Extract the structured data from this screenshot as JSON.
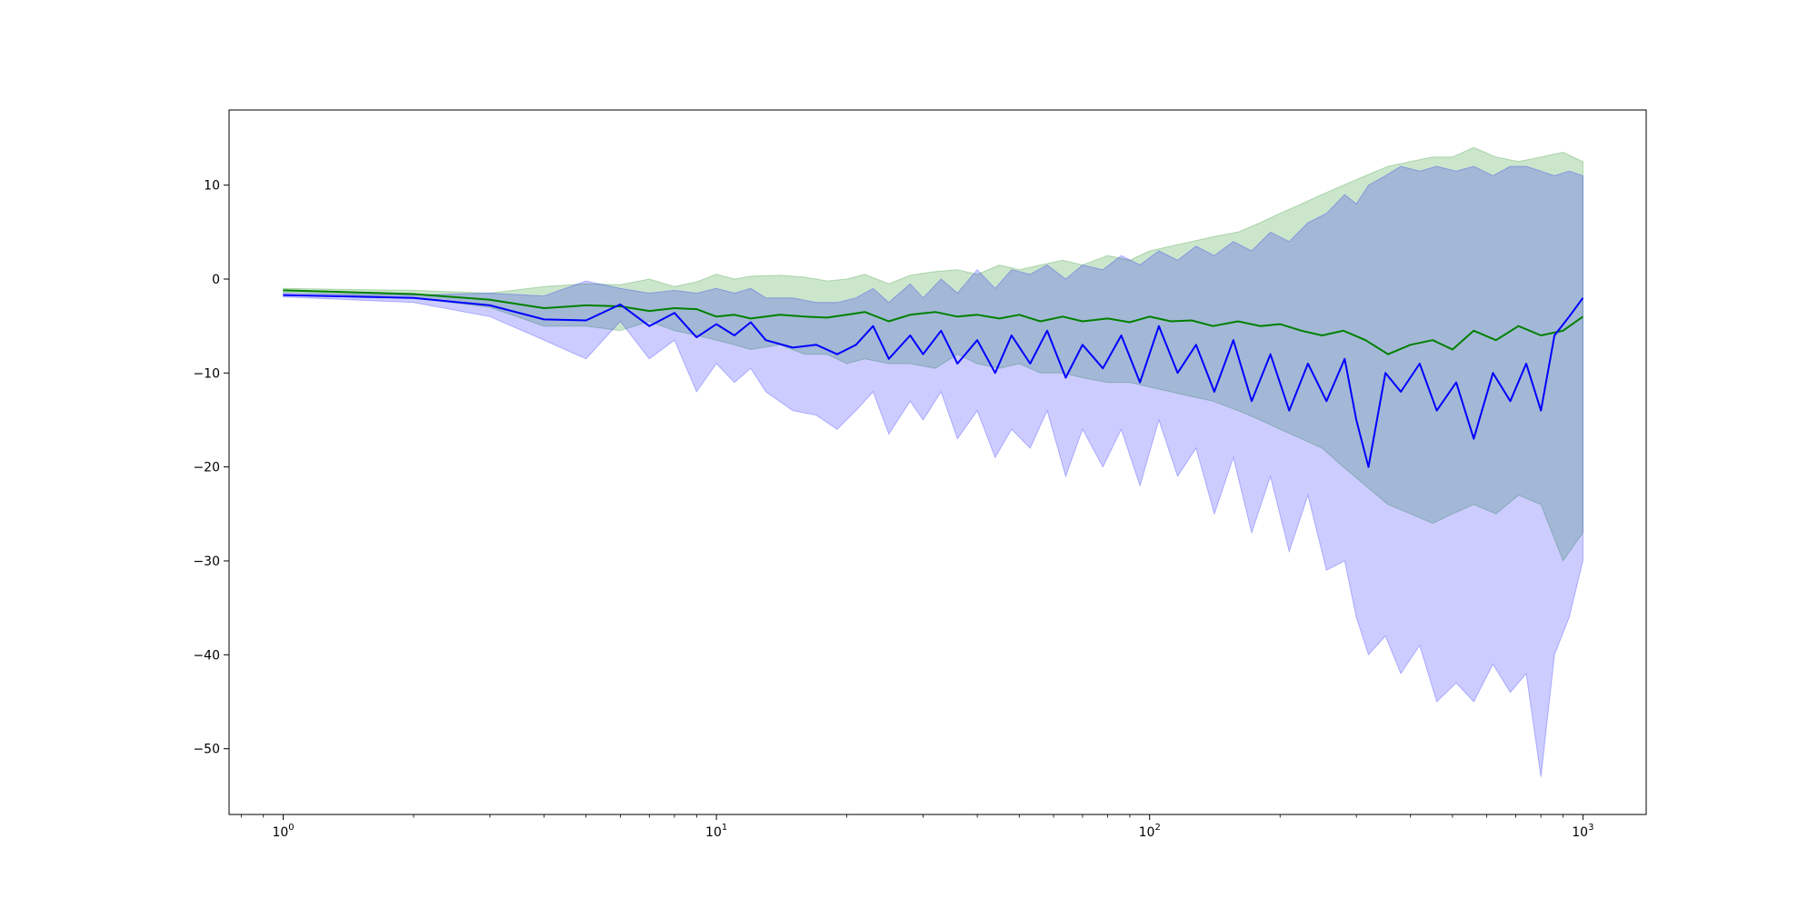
{
  "chart_data": {
    "type": "line",
    "title": "",
    "xlabel": "",
    "ylabel": "",
    "xscale": "log",
    "xlim": [
      0.75,
      1400
    ],
    "ylim": [
      -57,
      18
    ],
    "grid": false,
    "legend": "none",
    "x_ticks": [
      {
        "value": 1,
        "base": "10",
        "exp": "0"
      },
      {
        "value": 10,
        "base": "10",
        "exp": "1"
      },
      {
        "value": 100,
        "base": "10",
        "exp": "2"
      },
      {
        "value": 1000,
        "base": "10",
        "exp": "3"
      }
    ],
    "y_ticks": [
      {
        "value": 10,
        "label": "10"
      },
      {
        "value": 0,
        "label": "0"
      },
      {
        "value": -10,
        "label": "−10"
      },
      {
        "value": -20,
        "label": "−20"
      },
      {
        "value": -30,
        "label": "−30"
      },
      {
        "value": -40,
        "label": "−40"
      },
      {
        "value": -50,
        "label": "−50"
      }
    ],
    "series": [
      {
        "color": "#008000",
        "band_color": "#008000",
        "band_opacity": 0.2,
        "points": [
          [
            1,
            -1.2,
            -1.0,
            -1.4
          ],
          [
            2,
            -1.6,
            -1.2,
            -2.0
          ],
          [
            3,
            -2.2,
            -1.5,
            -3.0
          ],
          [
            4,
            -3.1,
            -0.8,
            -5.0
          ],
          [
            5,
            -2.8,
            -0.5,
            -5.0
          ],
          [
            6,
            -2.9,
            -0.6,
            -5.5
          ],
          [
            7,
            -3.4,
            0.0,
            -4.5
          ],
          [
            8,
            -3.1,
            -0.8,
            -5.5
          ],
          [
            9,
            -3.2,
            -0.3,
            -6.0
          ],
          [
            10,
            -4.0,
            0.5,
            -6.5
          ],
          [
            11,
            -3.8,
            0.0,
            -7.0
          ],
          [
            12,
            -4.2,
            0.3,
            -7.5
          ],
          [
            14,
            -3.8,
            0.4,
            -7.0
          ],
          [
            16,
            -4.0,
            0.2,
            -8.0
          ],
          [
            18,
            -4.1,
            -0.2,
            -8.0
          ],
          [
            20,
            -3.8,
            0.0,
            -9.0
          ],
          [
            22,
            -3.5,
            0.5,
            -8.5
          ],
          [
            25,
            -4.5,
            -0.5,
            -9.0
          ],
          [
            28,
            -3.8,
            0.4,
            -9.0
          ],
          [
            32,
            -3.5,
            0.8,
            -9.5
          ],
          [
            36,
            -4.0,
            1.0,
            -8.0
          ],
          [
            40,
            -3.8,
            0.5,
            -9.0
          ],
          [
            45,
            -4.2,
            1.5,
            -9.5
          ],
          [
            50,
            -3.8,
            1.0,
            -9.0
          ],
          [
            56,
            -4.5,
            1.5,
            -10.0
          ],
          [
            63,
            -4.0,
            2.0,
            -10.0
          ],
          [
            70,
            -4.5,
            1.5,
            -10.5
          ],
          [
            80,
            -4.2,
            2.5,
            -11.0
          ],
          [
            90,
            -4.6,
            2.0,
            -11.0
          ],
          [
            100,
            -4.0,
            3.0,
            -11.5
          ],
          [
            112,
            -4.5,
            3.5,
            -12.0
          ],
          [
            125,
            -4.4,
            4.0,
            -12.5
          ],
          [
            140,
            -5.0,
            4.5,
            -13.0
          ],
          [
            160,
            -4.5,
            5.0,
            -14.0
          ],
          [
            180,
            -5.0,
            6.0,
            -15.0
          ],
          [
            200,
            -4.8,
            7.0,
            -16.0
          ],
          [
            224,
            -5.5,
            8.0,
            -17.0
          ],
          [
            250,
            -6.0,
            9.0,
            -18.0
          ],
          [
            280,
            -5.5,
            10.0,
            -20.0
          ],
          [
            315,
            -6.5,
            11.0,
            -22.0
          ],
          [
            355,
            -8.0,
            12.0,
            -24.0
          ],
          [
            400,
            -7.0,
            12.5,
            -25.0
          ],
          [
            450,
            -6.5,
            13.0,
            -26.0
          ],
          [
            500,
            -7.5,
            13.0,
            -25.0
          ],
          [
            560,
            -5.5,
            14.0,
            -24.0
          ],
          [
            630,
            -6.5,
            13.0,
            -25.0
          ],
          [
            710,
            -5.0,
            12.5,
            -23.0
          ],
          [
            800,
            -6.0,
            13.0,
            -24.0
          ],
          [
            900,
            -5.5,
            13.5,
            -30.0
          ],
          [
            1000,
            -4.0,
            12.5,
            -27.0
          ]
        ]
      },
      {
        "color": "#0000ff",
        "band_color": "#0000ff",
        "band_opacity": 0.2,
        "points": [
          [
            1,
            -1.7,
            -1.5,
            -1.9
          ],
          [
            2,
            -2.0,
            -1.7,
            -2.5
          ],
          [
            3,
            -2.8,
            -1.5,
            -4.0
          ],
          [
            4,
            -4.3,
            -1.8,
            -6.5
          ],
          [
            5,
            -4.4,
            -0.2,
            -8.5
          ],
          [
            6,
            -2.7,
            -1.0,
            -4.5
          ],
          [
            7,
            -5.0,
            -1.5,
            -8.5
          ],
          [
            8,
            -3.6,
            -1.2,
            -6.5
          ],
          [
            9,
            -6.2,
            -1.5,
            -12.0
          ],
          [
            10,
            -4.8,
            -1.0,
            -9.0
          ],
          [
            11,
            -6.0,
            -1.5,
            -11.0
          ],
          [
            12,
            -4.6,
            -1.0,
            -9.5
          ],
          [
            13,
            -6.5,
            -2.0,
            -12.0
          ],
          [
            15,
            -7.3,
            -2.0,
            -14.0
          ],
          [
            17,
            -7.0,
            -2.5,
            -14.5
          ],
          [
            19,
            -8.0,
            -2.5,
            -16.0
          ],
          [
            21,
            -7.0,
            -2.0,
            -14.0
          ],
          [
            23,
            -5.0,
            -1.0,
            -12.0
          ],
          [
            25,
            -8.5,
            -2.5,
            -16.5
          ],
          [
            28,
            -6.0,
            -0.5,
            -13.0
          ],
          [
            30,
            -8.0,
            -2.0,
            -15.0
          ],
          [
            33,
            -5.5,
            0.0,
            -12.0
          ],
          [
            36,
            -9.0,
            -1.5,
            -17.0
          ],
          [
            40,
            -6.5,
            1.0,
            -14.0
          ],
          [
            44,
            -10.0,
            -1.0,
            -19.0
          ],
          [
            48,
            -6.0,
            1.0,
            -16.0
          ],
          [
            53,
            -9.0,
            0.5,
            -18.0
          ],
          [
            58,
            -5.5,
            1.5,
            -14.0
          ],
          [
            64,
            -10.5,
            0.0,
            -21.0
          ],
          [
            70,
            -7.0,
            1.5,
            -16.0
          ],
          [
            78,
            -9.5,
            1.0,
            -20.0
          ],
          [
            86,
            -6.0,
            2.5,
            -16.0
          ],
          [
            95,
            -11.0,
            1.5,
            -22.0
          ],
          [
            105,
            -5.0,
            3.0,
            -15.0
          ],
          [
            116,
            -10.0,
            2.0,
            -21.0
          ],
          [
            128,
            -7.0,
            3.5,
            -18.0
          ],
          [
            141,
            -12.0,
            2.5,
            -25.0
          ],
          [
            156,
            -6.5,
            4.0,
            -19.0
          ],
          [
            172,
            -13.0,
            3.0,
            -27.0
          ],
          [
            190,
            -8.0,
            5.0,
            -21.0
          ],
          [
            210,
            -14.0,
            4.0,
            -29.0
          ],
          [
            232,
            -9.0,
            6.0,
            -23.0
          ],
          [
            256,
            -13.0,
            7.0,
            -31.0
          ],
          [
            282,
            -8.5,
            9.0,
            -30.0
          ],
          [
            300,
            -15.0,
            8.0,
            -36.0
          ],
          [
            320,
            -20.0,
            10.0,
            -40.0
          ],
          [
            350,
            -10.0,
            11.0,
            -38.0
          ],
          [
            380,
            -12.0,
            12.0,
            -42.0
          ],
          [
            420,
            -9.0,
            11.5,
            -39.0
          ],
          [
            460,
            -14.0,
            12.0,
            -45.0
          ],
          [
            510,
            -11.0,
            11.5,
            -43.0
          ],
          [
            560,
            -17.0,
            12.0,
            -45.0
          ],
          [
            620,
            -10.0,
            11.0,
            -41.0
          ],
          [
            680,
            -13.0,
            12.0,
            -44.0
          ],
          [
            740,
            -9.0,
            12.0,
            -42.0
          ],
          [
            800,
            -14.0,
            11.5,
            -53.0
          ],
          [
            860,
            -6.0,
            11.0,
            -40.0
          ],
          [
            930,
            -4.0,
            11.5,
            -36.0
          ],
          [
            1000,
            -2.0,
            11.0,
            -30.0
          ]
        ]
      }
    ]
  }
}
